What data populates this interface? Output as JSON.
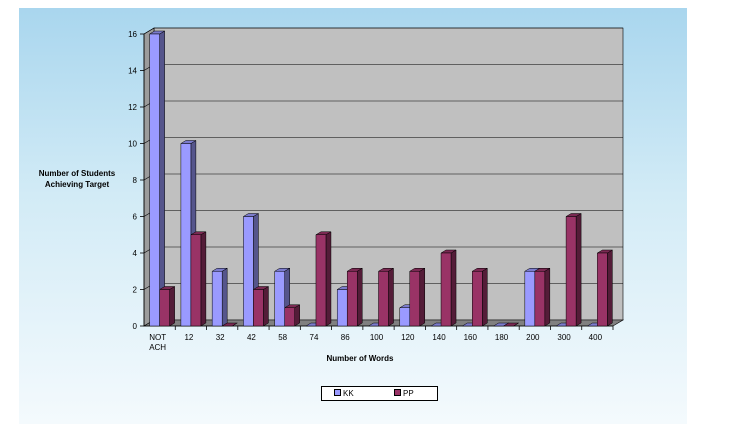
{
  "chart_data": {
    "type": "bar",
    "title": "",
    "xlabel": "Number of Words",
    "ylabel_lines": [
      "Number of Students",
      "Achieving Target"
    ],
    "categories": [
      [
        "NOT",
        "ACH"
      ],
      [
        "12"
      ],
      [
        "32"
      ],
      [
        "42"
      ],
      [
        "58"
      ],
      [
        "74"
      ],
      [
        "86"
      ],
      [
        "100"
      ],
      [
        "120"
      ],
      [
        "140"
      ],
      [
        "160"
      ],
      [
        "180"
      ],
      [
        "200"
      ],
      [
        "300"
      ],
      [
        "400"
      ]
    ],
    "series": [
      {
        "name": "KK",
        "color": "#9a9aff",
        "values": [
          16,
          10,
          3,
          6,
          3,
          0,
          2,
          0,
          1,
          0,
          0,
          0,
          3,
          0,
          0
        ]
      },
      {
        "name": "PP",
        "color": "#993366",
        "values": [
          2,
          5,
          0,
          2,
          1,
          5,
          3,
          3,
          3,
          4,
          3,
          0,
          3,
          6,
          4
        ]
      }
    ],
    "ylim": [
      0,
      16
    ],
    "yticks": [
      0,
      2,
      4,
      6,
      8,
      10,
      12,
      14,
      16
    ],
    "grid": true,
    "legend": "bottom",
    "plot_background": "#c0c0c0",
    "panel_background": "#bfe2f3"
  }
}
